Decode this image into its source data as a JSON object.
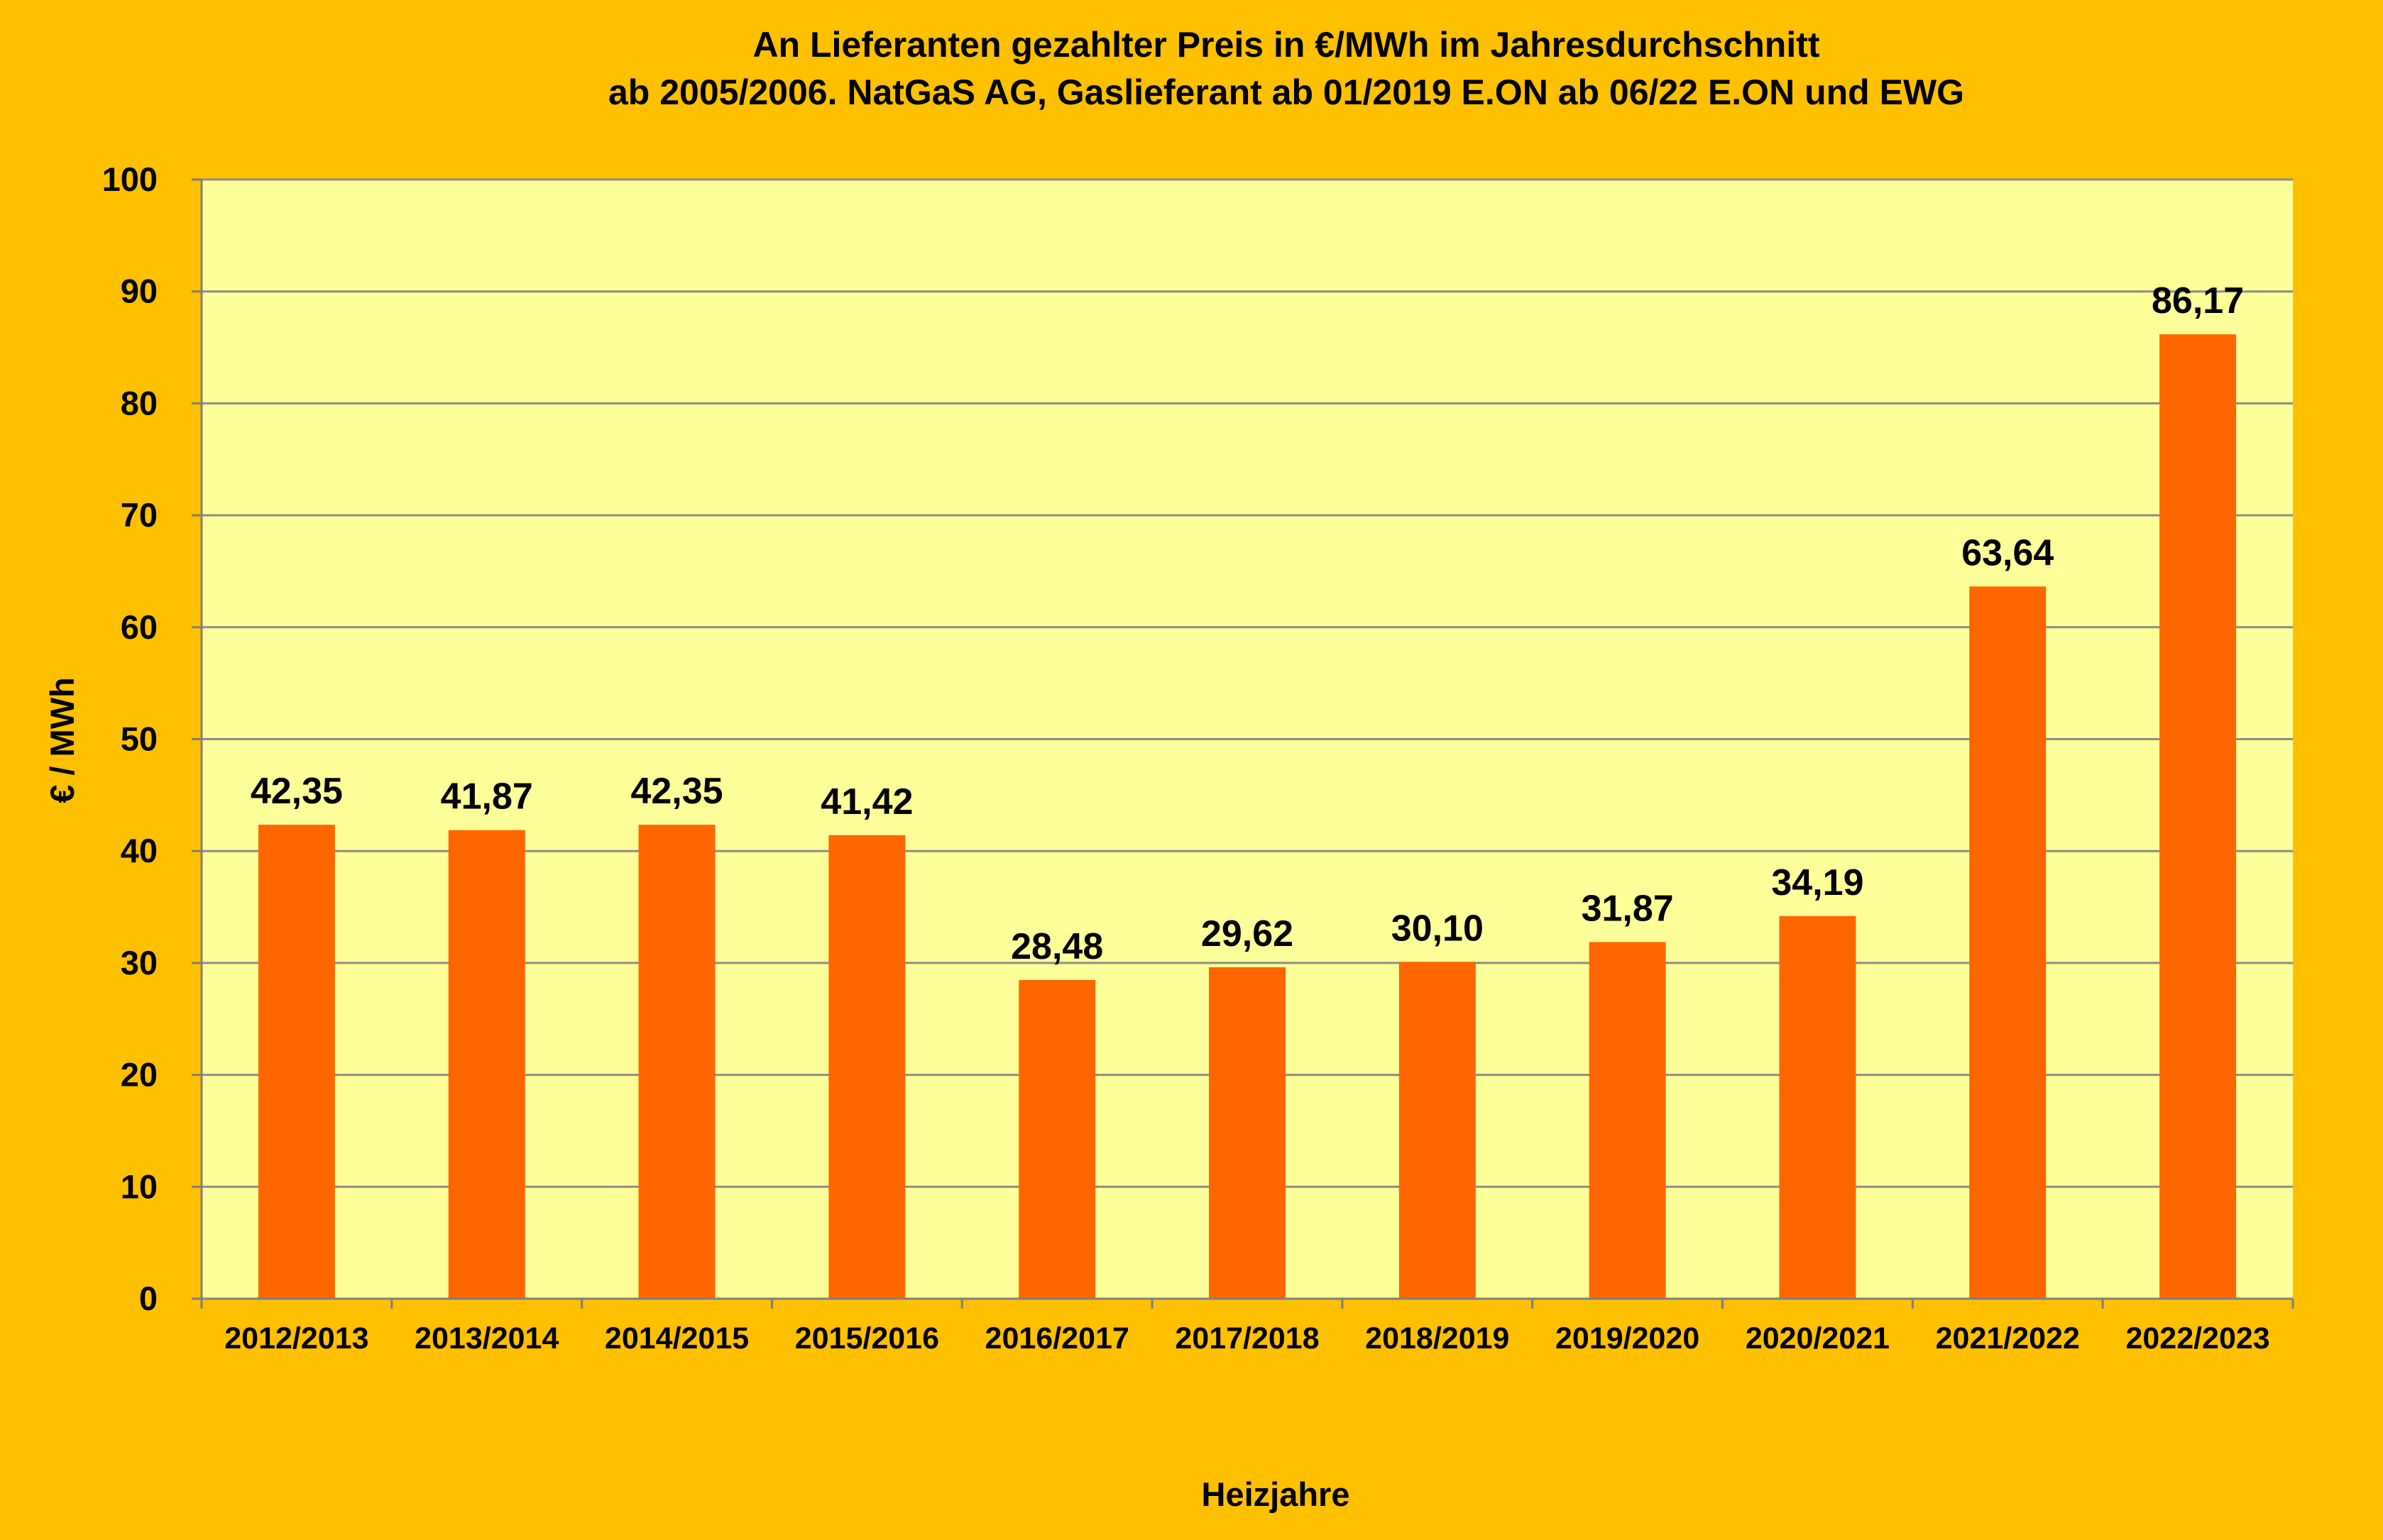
{
  "chart_data": {
    "type": "bar",
    "title_lines": [
      "An Lieferanten gezahlter Preis in €/MWh im  Jahresdurchschnitt",
      "ab 2005/2006. NatGaS AG, Gaslieferant ab 01/2019 E.ON ab 06/22 E.ON und EWG"
    ],
    "xlabel": "Heizjahre",
    "ylabel": "€ / MWh",
    "ylim": [
      0,
      100
    ],
    "yticks": [
      0,
      10,
      20,
      30,
      40,
      50,
      60,
      70,
      80,
      90,
      100
    ],
    "categories": [
      "2012/2013",
      "2013/2014",
      "2014/2015",
      "2015/2016",
      "2016/2017",
      "2017/2018",
      "2018/2019",
      "2019/2020",
      "2020/2021",
      "2021/2022",
      "2022/2023"
    ],
    "values": [
      42.35,
      41.87,
      42.35,
      41.42,
      28.48,
      29.62,
      30.1,
      31.87,
      34.19,
      63.64,
      86.17
    ],
    "data_labels": [
      "42,35",
      "41,87",
      "42,35",
      "41,42",
      "28,48",
      "29,62",
      "30,10",
      "31,87",
      "34,19",
      "63,64",
      "86,17"
    ],
    "grid": true,
    "legend": "none",
    "colors": {
      "page_background": "#FFC000",
      "plot_background": "#FFFF99",
      "bar": "#FF6600",
      "gridline": "#8C8C8C",
      "axis": "#7F7F7F"
    }
  }
}
